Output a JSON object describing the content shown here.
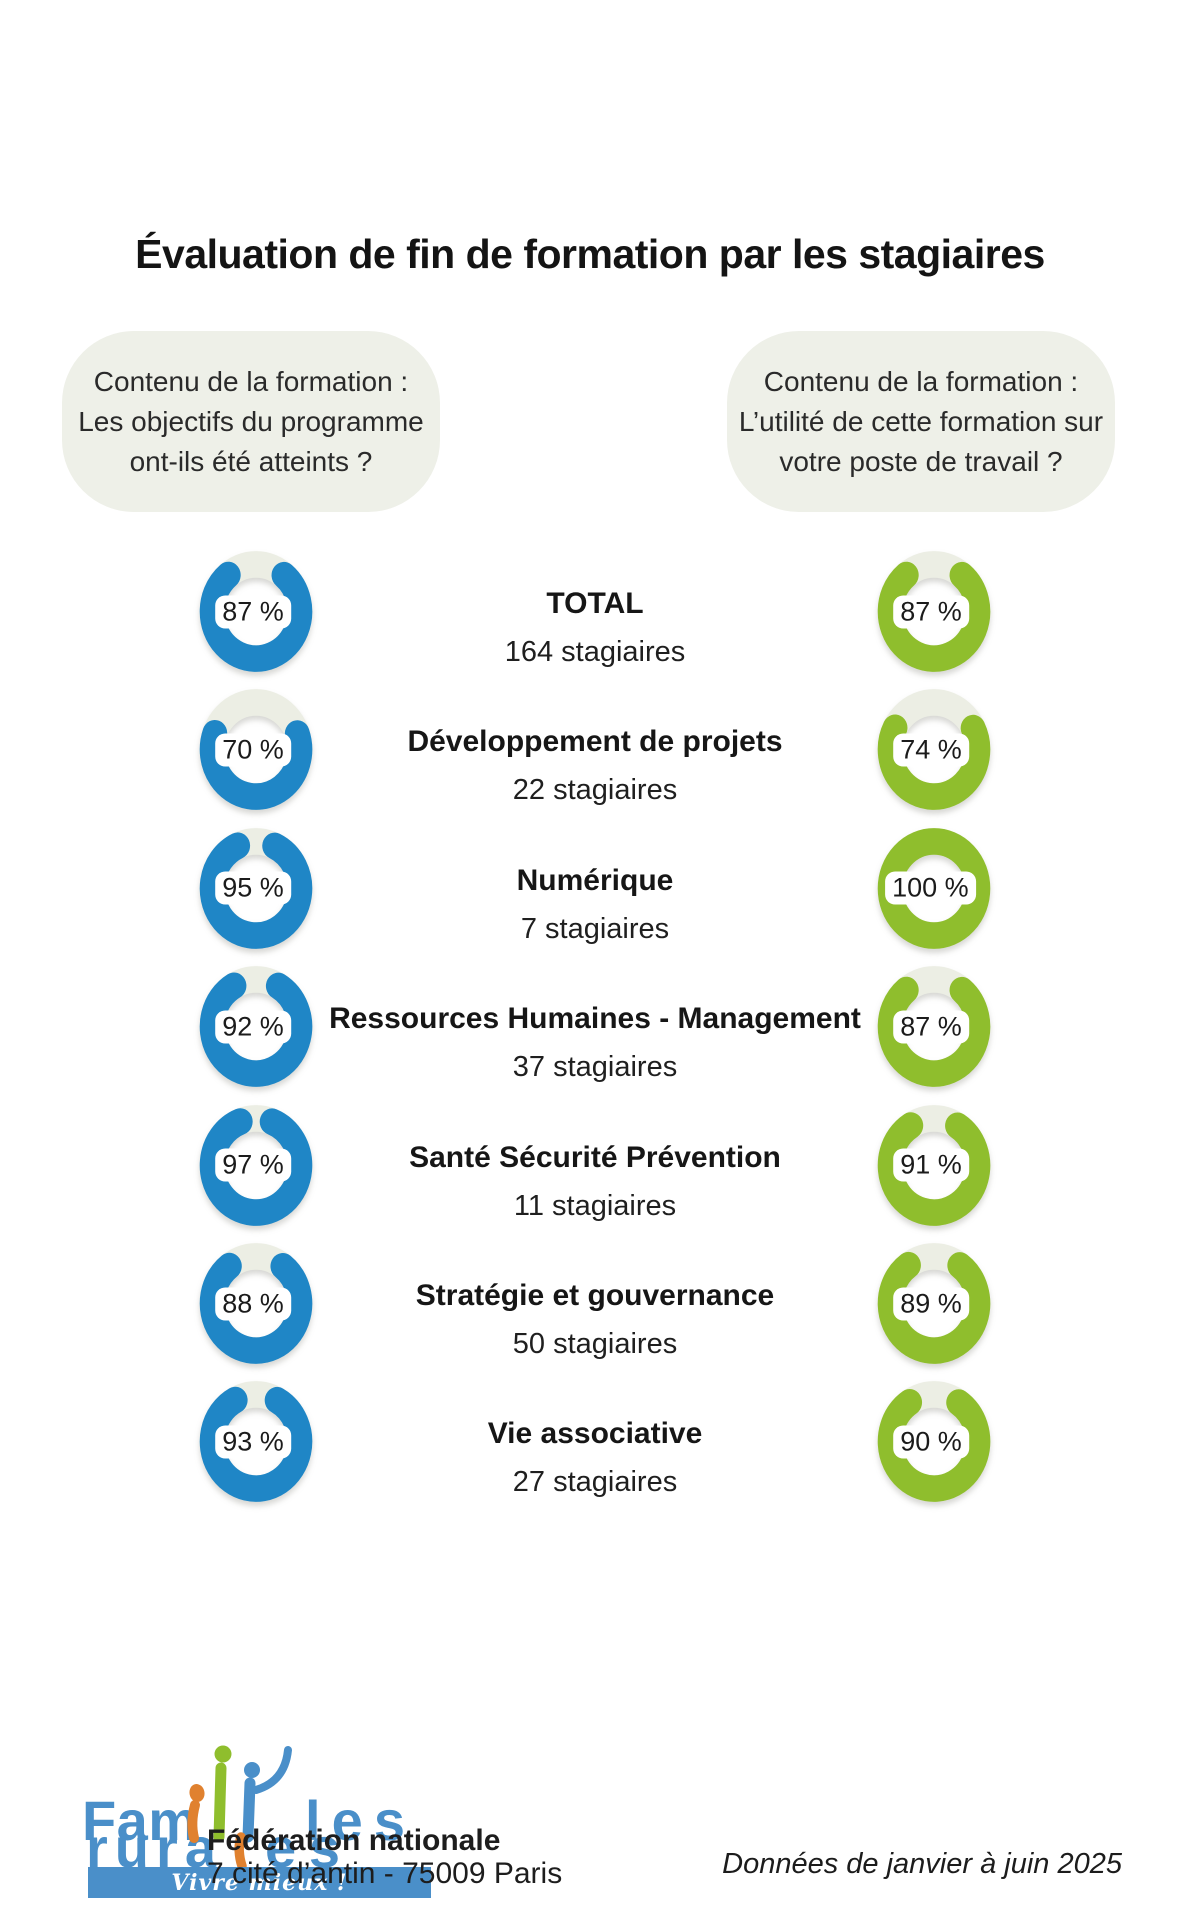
{
  "title": "Évaluation de fin de formation par les stagiaires",
  "questions": {
    "left": [
      "Contenu de la formation :",
      "Les objectifs du programme",
      "ont-ils été atteints ?"
    ],
    "right": [
      "Contenu de la formation :",
      "L’utilité de cette formation sur",
      "votre poste de travail ?"
    ]
  },
  "chart_data": {
    "type": "donut",
    "unit": "%",
    "value_suffix": " %",
    "track_color": "#ECEEE4",
    "categories": [
      "TOTAL",
      "Développement de projets",
      "Numérique",
      "Ressources Humaines - Management",
      "Santé Sécurité Prévention",
      "Stratégie et gouvernance",
      "Vie associative"
    ],
    "counts": [
      "164 stagiaires",
      "22 stagiaires",
      "7 stagiaires",
      "37 stagiaires",
      "11 stagiaires",
      "50 stagiaires",
      "27 stagiaires"
    ],
    "series": [
      {
        "name": "Contenu de la formation : Les objectifs du programme ont-ils été atteints ?",
        "color": "#1F86C6",
        "values": [
          87,
          70,
          95,
          92,
          97,
          88,
          93
        ]
      },
      {
        "name": "Contenu de la formation : L’utilité de cette formation sur votre poste de travail ?",
        "color": "#8FBE2D",
        "values": [
          87,
          74,
          100,
          87,
          91,
          89,
          90
        ]
      }
    ],
    "legend_position": "top",
    "grid": false
  },
  "footer": {
    "logo": {
      "line1_prefix": "Fam",
      "line1_suffix": "les",
      "line2_prefix": "rura",
      "line2_suffix": "es",
      "tagline": "Vivre mieux !"
    },
    "org_name": "Fédération nationale",
    "address": "7 cité d’antin - 75009 Paris",
    "data_note": "Données de janvier à juin 2025"
  },
  "colors": {
    "blue": "#1F86C6",
    "green": "#8FBE2D",
    "track": "#ECEEE4",
    "bubble_bg": "#EEF0E8",
    "logo_blue": "#4A8FC9",
    "logo_orange": "#E0812F",
    "logo_green": "#8FBE2D"
  }
}
